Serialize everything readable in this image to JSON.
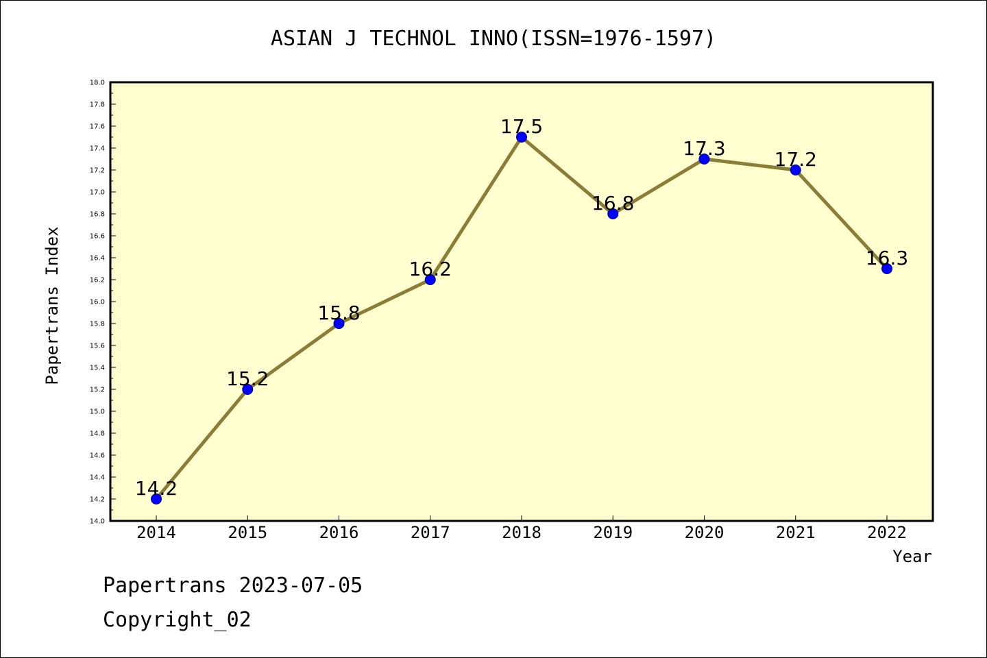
{
  "chart_data": {
    "type": "line",
    "title": "ASIAN J TECHNOL INNO(ISSN=1976-1597)",
    "xlabel": "Year",
    "ylabel": "Papertrans Index",
    "x": [
      "2014",
      "2015",
      "2016",
      "2017",
      "2018",
      "2019",
      "2020",
      "2021",
      "2022"
    ],
    "values": [
      14.2,
      15.2,
      15.8,
      16.2,
      17.5,
      16.8,
      17.3,
      17.2,
      16.3
    ],
    "data_labels": [
      "14.2",
      "15.2",
      "15.8",
      "16.2",
      "17.5",
      "16.8",
      "17.3",
      "17.2",
      "16.3"
    ],
    "ylim": [
      14.0,
      18.0
    ],
    "y_ticks": [
      "14.0",
      "14.2",
      "14.4",
      "14.6",
      "14.8",
      "15.0",
      "15.2",
      "15.4",
      "15.6",
      "15.8",
      "16.0",
      "16.2",
      "16.4",
      "16.6",
      "16.8",
      "17.0",
      "17.2",
      "17.4",
      "17.6",
      "17.8",
      "18.0"
    ],
    "grid": false,
    "colors": {
      "plot_background": "#ffffd0",
      "line": "#8b7d36",
      "marker": "#0000ff"
    }
  },
  "footer": {
    "line1": "Papertrans 2023-07-05",
    "line2": "Copyright_02"
  }
}
